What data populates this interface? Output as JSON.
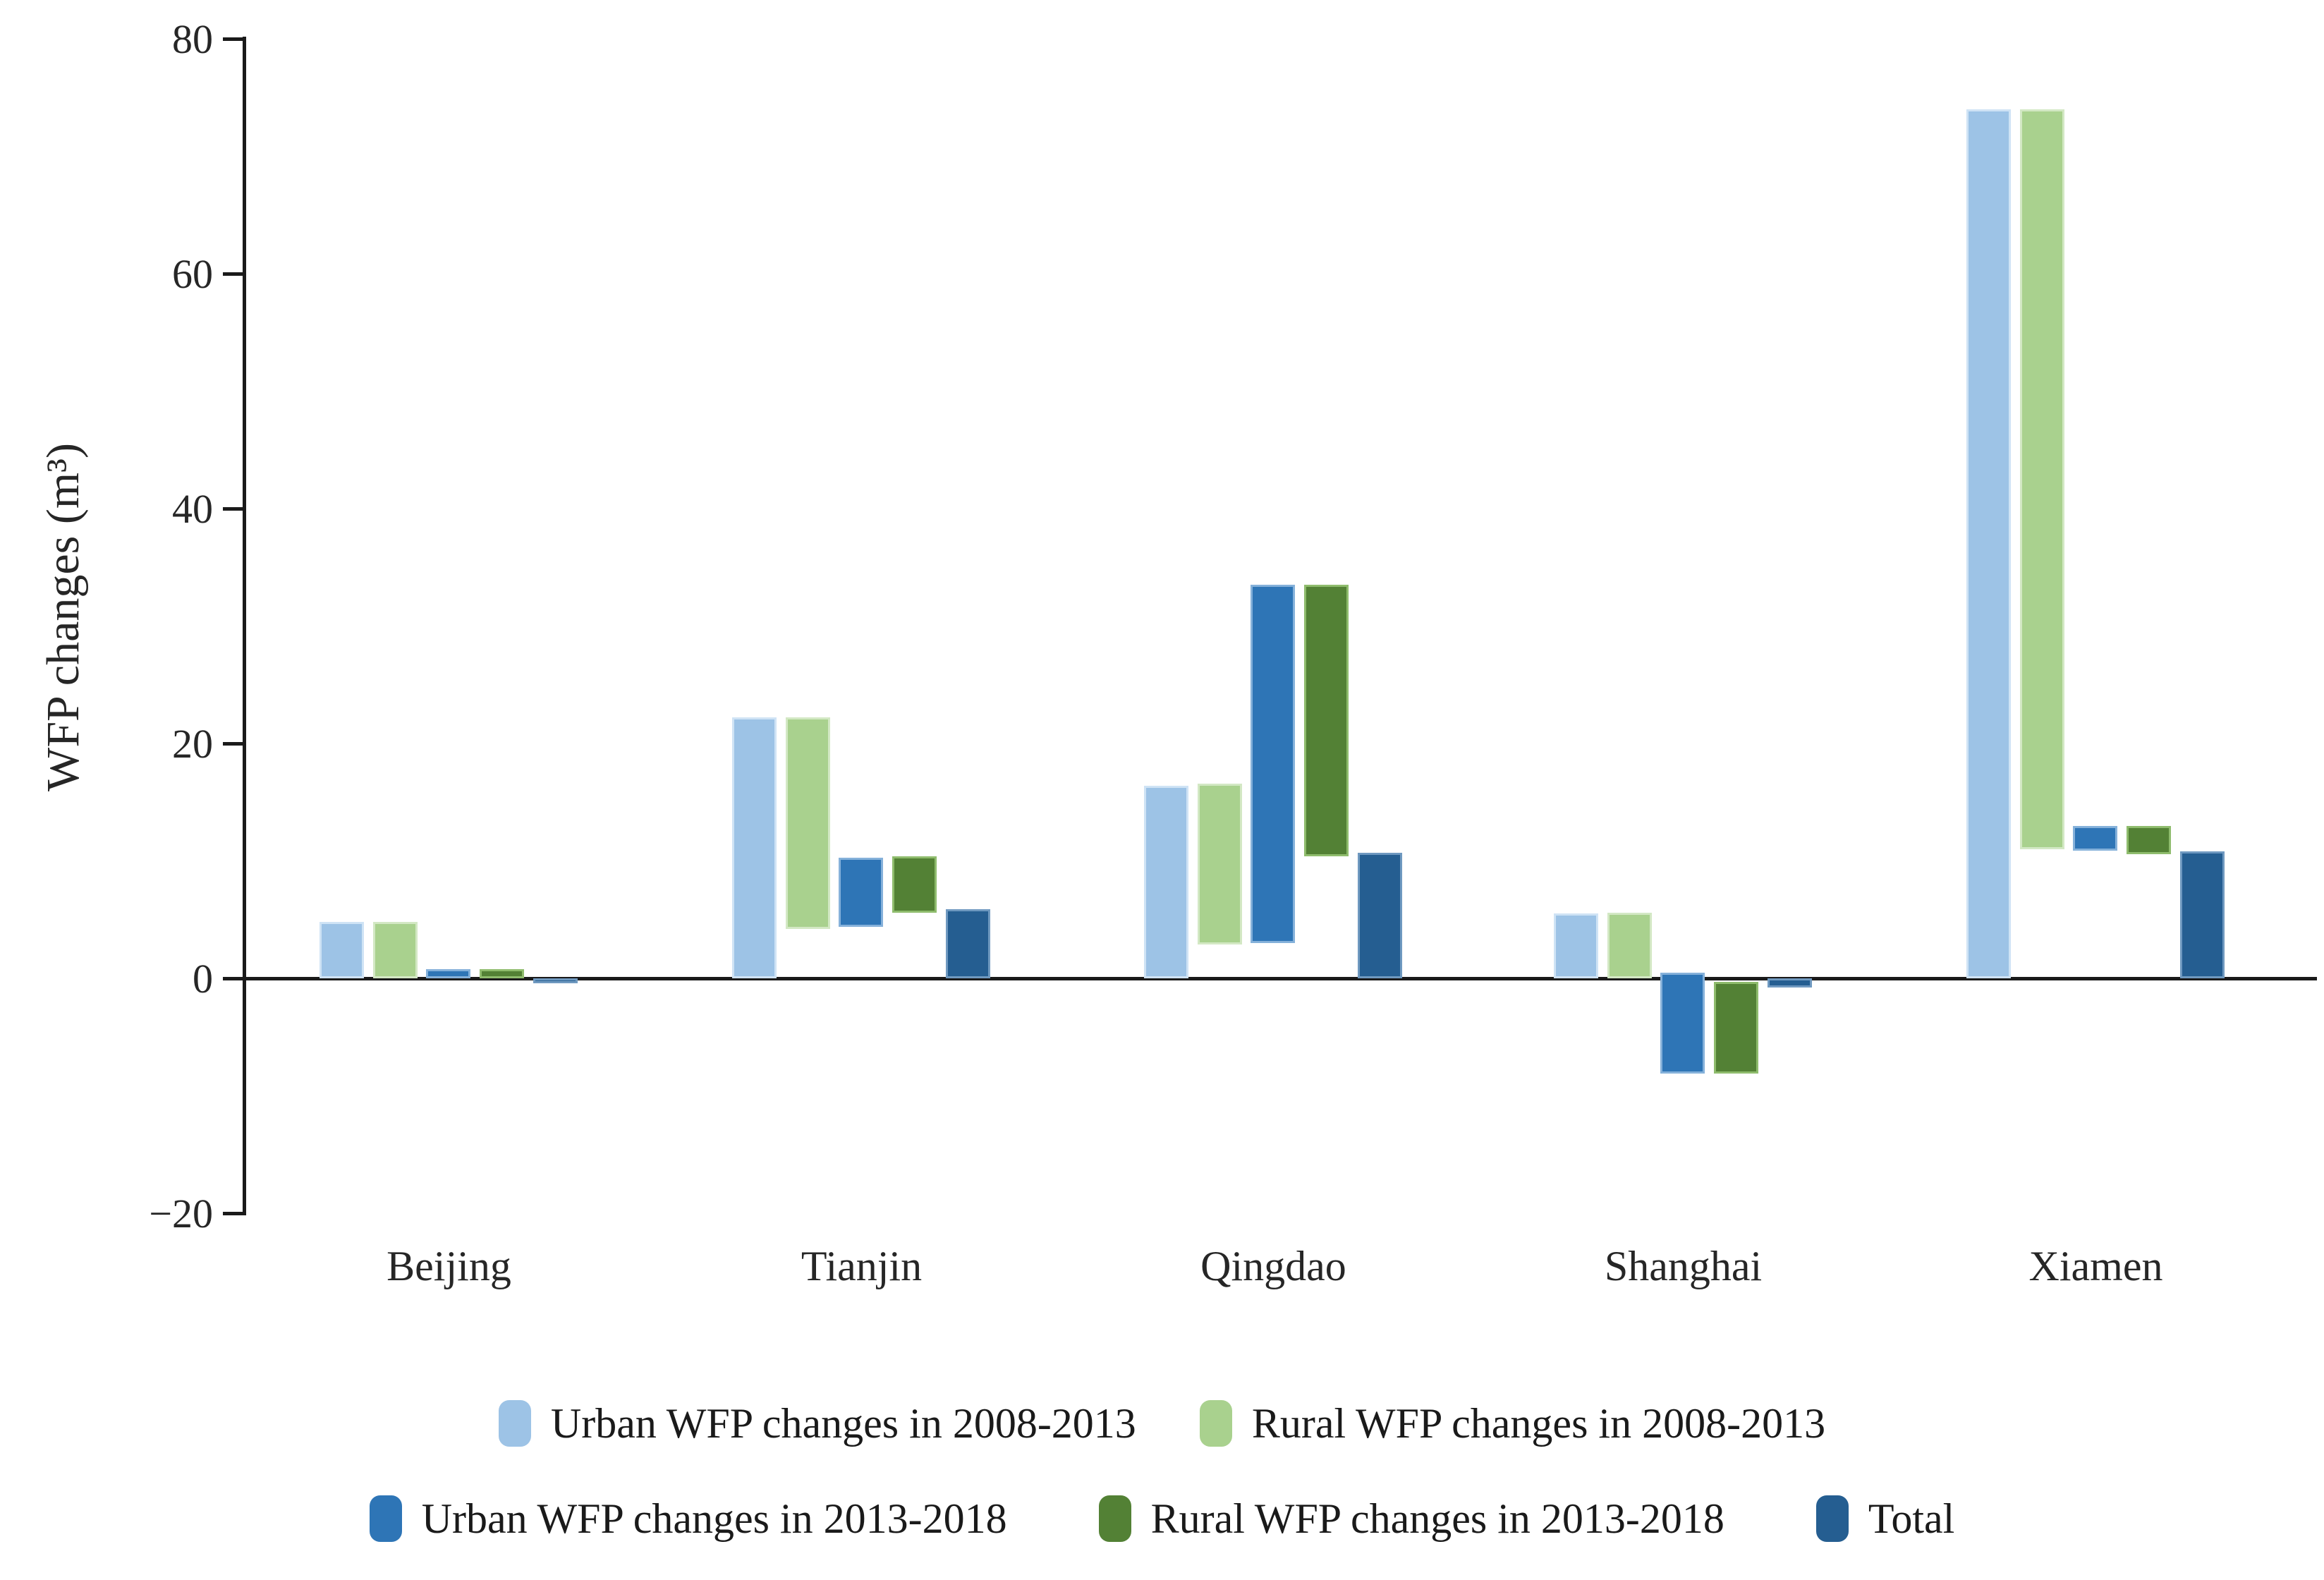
{
  "chart_data": {
    "type": "bar",
    "subtype": "grouped-floating-bars",
    "title": "",
    "xlabel": "",
    "ylabel": "WFP changes (m³)",
    "ylim": [
      -20,
      80
    ],
    "yticks": [
      80,
      60,
      40,
      20,
      0,
      -20
    ],
    "grid": false,
    "legend_position": "bottom",
    "background_color": "#ffffff",
    "axis_color": "#1a1a1a",
    "categories": [
      "Beijing",
      "Tianjin",
      "Qingdao",
      "Shanghai",
      "Xiamen"
    ],
    "series": [
      {
        "name": "Urban WFP changes in 2008-2013",
        "color": "#9DC3E6",
        "border_color": "#CFE3F5",
        "segments": [
          [
            0,
            4.8
          ],
          [
            0,
            22.2
          ],
          [
            0,
            16.4
          ],
          [
            0,
            5.5
          ],
          [
            0,
            74
          ]
        ]
      },
      {
        "name": "Rural WFP changes in 2008-2013",
        "color": "#A9D18E",
        "border_color": "#D3E8C4",
        "segments": [
          [
            0,
            4.8
          ],
          [
            4.2,
            22.2
          ],
          [
            2.9,
            16.6
          ],
          [
            0,
            5.6
          ],
          [
            11,
            74
          ]
        ]
      },
      {
        "name": "Urban WFP changes in 2013-2018",
        "color": "#2E75B6",
        "border_color": "#85B1DA",
        "segments": [
          [
            0,
            0.8
          ],
          [
            4.4,
            10.3
          ],
          [
            3,
            33.5
          ],
          [
            -8.1,
            0.5
          ],
          [
            10.9,
            13
          ]
        ]
      },
      {
        "name": "Rural WFP changes in 2013-2018",
        "color": "#538135",
        "border_color": "#8FBC6D",
        "segments": [
          [
            0,
            0.8
          ],
          [
            5.6,
            10.4
          ],
          [
            10.4,
            33.5
          ],
          [
            -8.1,
            -0.3
          ],
          [
            10.6,
            13
          ]
        ]
      },
      {
        "name": "Total",
        "color": "#255E91",
        "border_color": "#6F99C0",
        "segments": [
          [
            -0.4,
            0
          ],
          [
            0,
            5.9
          ],
          [
            0,
            10.7
          ],
          [
            -0.8,
            0
          ],
          [
            0,
            10.8
          ]
        ]
      }
    ],
    "segment_note": "segments are [bottom, top] values in m³ for each category"
  },
  "legend": {
    "rows": [
      [
        0,
        1
      ],
      [
        2,
        3,
        4
      ]
    ]
  }
}
